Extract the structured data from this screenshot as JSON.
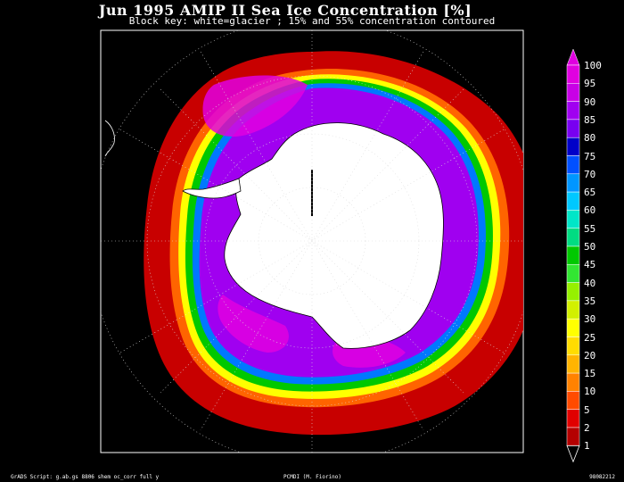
{
  "header": {
    "title": "Jun 1995 AMIP II Sea Ice Concentration [%]",
    "subtitle": "Block key: white=glacier ; 15% and 55% concentration contoured"
  },
  "footer": {
    "left": "GrADS Script: g.ab.gs 8806 shem oc_corr full y",
    "middle": "PCMDI (M. Fiorino)",
    "right": "98082212"
  },
  "colorbar": {
    "labels": [
      "100",
      "95",
      "90",
      "85",
      "80",
      "75",
      "70",
      "65",
      "60",
      "55",
      "50",
      "45",
      "40",
      "35",
      "30",
      "25",
      "20",
      "15",
      "10",
      "5",
      "2",
      "1"
    ],
    "colors": [
      "#e000e0",
      "#c800e6",
      "#a000f0",
      "#7800f0",
      "#0000c8",
      "#0050ff",
      "#0096ff",
      "#00c8ff",
      "#00e6c8",
      "#00dc82",
      "#00c800",
      "#32e632",
      "#96f000",
      "#d2f000",
      "#ffff00",
      "#ffdc00",
      "#ffb400",
      "#ff8200",
      "#ff4b00",
      "#e10000",
      "#b40000"
    ]
  },
  "map": {
    "projection": "polar-stereographic-south",
    "land_color": "#ffffff",
    "background_color": "#000000",
    "grid_style": "dotted"
  }
}
